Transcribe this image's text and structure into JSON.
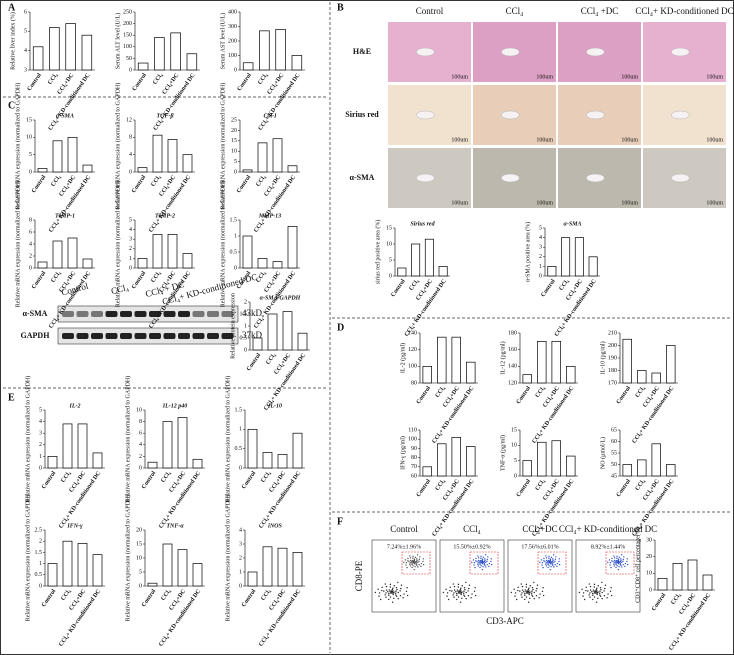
{
  "panels": {
    "A": "A",
    "B": "B",
    "C": "C",
    "D": "D",
    "E": "E",
    "F": "F"
  },
  "micro": {
    "columns": [
      "Control",
      "CCl₄",
      "CCl₄ +DC",
      "CCl₄+ KD-conditioned DC"
    ],
    "rows": [
      "H&E",
      "Sirius red",
      "α-SMA"
    ],
    "scale": "100um"
  },
  "western": {
    "bands": [
      "α-SMA",
      "GAPDH"
    ],
    "sizes": [
      "43kD",
      "37kD"
    ],
    "lanes": [
      "Control",
      "CCl₄",
      "CCl₄ + DC",
      "CCl₄+ KD-conditioned DC"
    ]
  },
  "flow": {
    "groups": [
      "Control",
      "CCl₄",
      "CCl₄+DC",
      "CCl₄+ KD-conditioned DC"
    ],
    "percentages": [
      "7.24%±1.96%",
      "15.50%±0.92%",
      "17.56%±6.01%",
      "8.92%±1.44%"
    ],
    "xlabel": "CD3-APC",
    "ylabel": "CD8-PE"
  },
  "chart_data": [
    {
      "type": "bar",
      "ylabel": "Relative liver index (%)",
      "categories": [
        "Control",
        "CCl₄",
        "CCl₄+DC",
        "CCl₄+ KD-conditioned DC"
      ],
      "values": [
        4.2,
        5.2,
        5.4,
        4.8
      ],
      "ylim": [
        3,
        6
      ],
      "yticks": [
        3,
        4,
        5,
        6
      ]
    },
    {
      "type": "bar",
      "ylabel": "Serum ALT level (U/L)",
      "categories": [
        "Control",
        "CCl₄",
        "CCl₄+DC",
        "CCl₄+ KD-conditioned DC"
      ],
      "values": [
        30,
        140,
        160,
        70
      ],
      "ylim": [
        0,
        250
      ],
      "yticks": [
        0,
        50,
        100,
        150,
        200,
        250
      ]
    },
    {
      "type": "bar",
      "ylabel": "Serum AST level (U/L)",
      "categories": [
        "Control",
        "CCl₄",
        "CCl₄+DC",
        "CCl₄+ KD-conditioned DC"
      ],
      "values": [
        50,
        270,
        280,
        100
      ],
      "ylim": [
        0,
        400
      ],
      "yticks": [
        0,
        100,
        200,
        300,
        400
      ]
    },
    {
      "type": "bar",
      "title": "α-SMA",
      "ylabel": "Relative mRNA expression (normalized to GAPDH)",
      "categories": [
        "Control",
        "CCl₄",
        "CCl₄+DC",
        "CCl₄+ KD-conditioned DC"
      ],
      "values": [
        1,
        9,
        10,
        2
      ],
      "ylim": [
        0,
        15
      ],
      "yticks": [
        0,
        5,
        10,
        15
      ]
    },
    {
      "type": "bar",
      "title": "TGF-β",
      "ylabel": "Relative mRNA expression (normalized to GAPDH)",
      "categories": [
        "Control",
        "CCl₄",
        "CCl₄+DC",
        "CCl₄+ KD-conditioned DC"
      ],
      "values": [
        1,
        8.5,
        7.5,
        4
      ],
      "ylim": [
        0,
        12
      ],
      "yticks": [
        0,
        4,
        8,
        12
      ]
    },
    {
      "type": "bar",
      "title": "Col-I",
      "ylabel": "Relative mRNA expression (normalized to GAPDH)",
      "categories": [
        "Control",
        "CCl₄",
        "CCl₄+DC",
        "CCl₄+ KD-conditioned DC"
      ],
      "values": [
        1,
        14,
        16,
        3
      ],
      "ylim": [
        0,
        25
      ],
      "yticks": [
        0,
        5,
        10,
        15,
        20,
        25
      ]
    },
    {
      "type": "bar",
      "title": "TIMP-1",
      "ylabel": "Relative mRNA expression (normalized to GAPDH)",
      "categories": [
        "Control",
        "CCl₄",
        "CCl₄+DC",
        "CCl₄+ KD-conditioned DC"
      ],
      "values": [
        1,
        4.5,
        5,
        1.5
      ],
      "ylim": [
        0,
        8
      ],
      "yticks": [
        0,
        2,
        4,
        6,
        8
      ]
    },
    {
      "type": "bar",
      "title": "TIMP-2",
      "ylabel": "Relative mRNA expression (normalized to GAPDH)",
      "categories": [
        "Control",
        "CCl₄",
        "CCl₄+DC",
        "CCl₄+ KD-conditioned DC"
      ],
      "values": [
        1,
        3.5,
        3.5,
        1.5
      ],
      "ylim": [
        0,
        5
      ],
      "yticks": [
        0,
        1,
        2,
        3,
        4,
        5
      ]
    },
    {
      "type": "bar",
      "title": "MMP-13",
      "ylabel": "Relative mRNA expression (normalized to GAPDH)",
      "categories": [
        "Control",
        "CCl₄",
        "CCl₄+DC",
        "CCl₄+ KD-conditioned DC"
      ],
      "values": [
        1,
        0.3,
        0.2,
        1.3
      ],
      "ylim": [
        0,
        1.5
      ],
      "yticks": [
        0,
        0.5,
        1,
        1.5
      ]
    },
    {
      "type": "bar",
      "title": "α-SMA/GAPDH",
      "ylabel": "Relative protein expression",
      "categories": [
        "Control",
        "CCl₄",
        "CCl₄+DC",
        "CCl₄+ KD-conditioned DC"
      ],
      "values": [
        0.5,
        1.5,
        1.6,
        0.7
      ],
      "ylim": [
        0,
        2
      ],
      "yticks": [
        0,
        0.5,
        1,
        1.5,
        2
      ]
    },
    {
      "type": "bar",
      "title": "IL-2",
      "ylabel": "Relative mRNA expression (normalized to GAPDH)",
      "categories": [
        "Control",
        "CCl₄",
        "CCl₄+DC",
        "CCl₄+ KD-conditioned DC"
      ],
      "values": [
        1,
        3.8,
        3.8,
        1.3
      ],
      "ylim": [
        0,
        5
      ],
      "yticks": [
        0,
        1,
        2,
        3,
        4,
        5
      ]
    },
    {
      "type": "bar",
      "title": "IL-12 p40",
      "ylabel": "Relative mRNA expression (normalized to GAPDH)",
      "categories": [
        "Control",
        "CCl₄",
        "CCl₄+DC",
        "CCl₄+ KD-conditioned DC"
      ],
      "values": [
        1,
        8,
        8.7,
        1.5
      ],
      "ylim": [
        0,
        10
      ],
      "yticks": [
        0,
        2,
        4,
        6,
        8,
        10
      ]
    },
    {
      "type": "bar",
      "title": "IL-10",
      "ylabel": "Relative mRNA expression (normalized to GAPDH)",
      "categories": [
        "Control",
        "CCl₄",
        "CCl₄+DC",
        "CCl₄+ KD-conditioned DC"
      ],
      "values": [
        1,
        0.4,
        0.35,
        0.9
      ],
      "ylim": [
        0,
        1.5
      ],
      "yticks": [
        0,
        0.5,
        1,
        1.5
      ]
    },
    {
      "type": "bar",
      "title": "IFN-γ",
      "ylabel": "Relative mRNA expression (normalized to GAPDH)",
      "categories": [
        "Control",
        "CCl₄",
        "CCl₄+DC",
        "CCl₄+ KD-conditioned DC"
      ],
      "values": [
        1,
        2,
        1.9,
        1.4
      ],
      "ylim": [
        0,
        2.5
      ],
      "yticks": [
        0,
        0.5,
        1,
        1.5,
        2,
        2.5
      ]
    },
    {
      "type": "bar",
      "title": "TNF-α",
      "ylabel": "Relative mRNA expression (normalized to GAPDH)",
      "categories": [
        "Control",
        "CCl₄",
        "CCl₄+DC",
        "CCl₄+ KD-conditioned DC"
      ],
      "values": [
        1,
        15,
        13,
        8
      ],
      "ylim": [
        0,
        20
      ],
      "yticks": [
        0,
        5,
        10,
        15,
        20
      ]
    },
    {
      "type": "bar",
      "title": "iNOS",
      "ylabel": "Relative mRNA expression (normalized to GAPDH)",
      "categories": [
        "Control",
        "CCl₄",
        "CCl₄+DC",
        "CCl₄+ KD-conditioned DC"
      ],
      "values": [
        1,
        2.8,
        2.7,
        2.4
      ],
      "ylim": [
        0,
        4
      ],
      "yticks": [
        0,
        1,
        2,
        3,
        4
      ]
    },
    {
      "type": "bar",
      "title": "Sirius red",
      "ylabel": "sirius red positive area (%)",
      "categories": [
        "Control",
        "CCl₄",
        "CCl₄+DC",
        "CCl₄+ KD-conditioned DC"
      ],
      "values": [
        2.5,
        10,
        11.5,
        3
      ],
      "ylim": [
        0,
        15
      ],
      "yticks": [
        0,
        5,
        10,
        15
      ]
    },
    {
      "type": "bar",
      "title": "α-SMA",
      "ylabel": "α-SMA positive area (%)",
      "categories": [
        "Control",
        "CCl₄",
        "CCl₄+DC",
        "CCl₄+ KD-conditioned DC"
      ],
      "values": [
        1,
        4,
        4,
        2
      ],
      "ylim": [
        0,
        5
      ],
      "yticks": [
        0,
        1,
        2,
        3,
        4,
        5
      ]
    },
    {
      "type": "bar",
      "ylabel": "IL-2 (pg/ml)",
      "categories": [
        "Control",
        "CCl₄",
        "CCl₄+DC",
        "CCl₄+ KD-conditioned DC"
      ],
      "values": [
        100,
        135,
        135,
        105
      ],
      "ylim": [
        80,
        140
      ],
      "yticks": [
        80,
        100,
        120,
        140
      ]
    },
    {
      "type": "bar",
      "ylabel": "IL-12 (pg/ml)",
      "categories": [
        "Control",
        "CCl₄",
        "CCl₄+DC",
        "CCl₄+ KD-conditioned DC"
      ],
      "values": [
        130,
        170,
        170,
        140
      ],
      "ylim": [
        120,
        180
      ],
      "yticks": [
        120,
        140,
        160,
        180
      ]
    },
    {
      "type": "bar",
      "ylabel": "IL-10 (pg/ml)",
      "categories": [
        "Control",
        "CCl₄",
        "CCl₄+DC",
        "CCl₄+ KD-conditioned DC"
      ],
      "values": [
        205,
        180,
        178,
        200
      ],
      "ylim": [
        170,
        210
      ],
      "yticks": [
        170,
        180,
        190,
        200,
        210
      ]
    },
    {
      "type": "bar",
      "ylabel": "IFN-γ (pg/ml)",
      "categories": [
        "Control",
        "CCl₄",
        "CCl₄+DC",
        "CCl₄+ KD-conditioned DC"
      ],
      "values": [
        70,
        95,
        102,
        92
      ],
      "ylim": [
        60,
        110
      ],
      "yticks": [
        60,
        70,
        80,
        90,
        100,
        110
      ]
    },
    {
      "type": "bar",
      "ylabel": "TNF-α (pg/ml)",
      "categories": [
        "Control",
        "CCl₄",
        "CCl₄+DC",
        "CCl₄+ KD-conditioned DC"
      ],
      "values": [
        5,
        11,
        11.5,
        6.5
      ],
      "ylim": [
        0,
        15
      ],
      "yticks": [
        0,
        5,
        10,
        15
      ]
    },
    {
      "type": "bar",
      "ylabel": "NO (μmol/L)",
      "categories": [
        "Control",
        "CCl₄",
        "CCl₄+DC",
        "CCl₄+ KD-conditioned DC"
      ],
      "values": [
        50,
        52,
        59,
        50
      ],
      "ylim": [
        45,
        65
      ],
      "yticks": [
        45,
        50,
        55,
        60,
        65
      ]
    },
    {
      "type": "bar",
      "ylabel": "CD3⁺CD8⁺ cell percentage(%)",
      "categories": [
        "Control",
        "CCl₄",
        "CCl₄+DC",
        "CCl₄+ KD-conditioned DC"
      ],
      "values": [
        7,
        16,
        18,
        9
      ],
      "ylim": [
        0,
        30
      ],
      "yticks": [
        0,
        10,
        20,
        30
      ]
    }
  ]
}
